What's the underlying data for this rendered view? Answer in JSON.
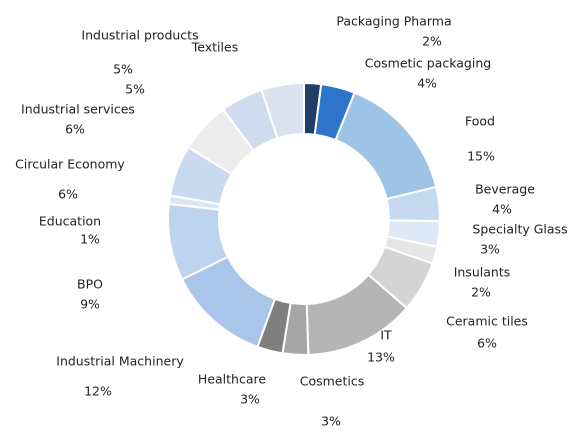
{
  "chart_data": {
    "type": "donut",
    "categories": [
      "Packaging Pharma",
      "Cosmetic packaging",
      "Food",
      "Beverage",
      "Specialty Glass",
      "Insulants",
      "Ceramic tiles",
      "IT",
      "Cosmetics",
      "Healthcare",
      "Industrial Machinery",
      "BPO",
      "Education",
      "Circular Economy",
      "Industrial services",
      "Industrial products",
      "Textiles"
    ],
    "values": [
      2,
      4,
      15,
      4,
      3,
      2,
      6,
      13,
      3,
      3,
      12,
      9,
      1,
      6,
      6,
      5,
      5
    ],
    "value_labels": [
      "2%",
      "4%",
      "15%",
      "4%",
      "3%",
      "2%",
      "6%",
      "13%",
      "3%",
      "3%",
      "12%",
      "9%",
      "1%",
      "6%",
      "6%",
      "5%",
      "5%"
    ],
    "colors": [
      "#1f3f66",
      "#2e75c9",
      "#9dc3e6",
      "#c5daf0",
      "#dde9f6",
      "#e6e6e6",
      "#d4d4d4",
      "#b5b5b5",
      "#a6a6a6",
      "#7f7f7f",
      "#a9c6ea",
      "#bdd4ef",
      "#dae6f4",
      "#c9daf0",
      "#ececec",
      "#cfdcee",
      "#dae3f0"
    ]
  }
}
